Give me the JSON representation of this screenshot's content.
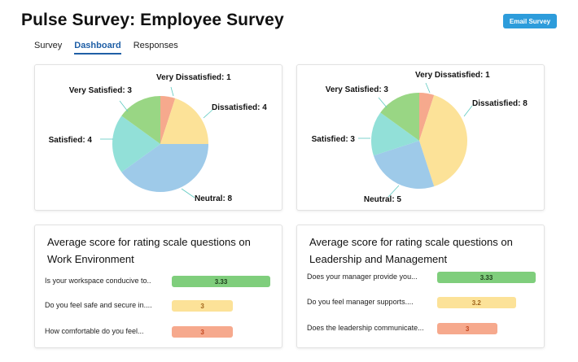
{
  "header": {
    "title": "Pulse Survey: Employee Survey",
    "email_button": "Email Survey"
  },
  "tabs": [
    {
      "label": "Survey",
      "active": false
    },
    {
      "label": "Dashboard",
      "active": true
    },
    {
      "label": "Responses",
      "active": false
    }
  ],
  "colors": {
    "very_dissatisfied": "#f6a98d",
    "dissatisfied": "#fce298",
    "neutral": "#9ecae9",
    "satisfied": "#92e0d8",
    "very_satisfied": "#99d684",
    "bar_green": "#7fce7c",
    "bar_yellow": "#fce298",
    "bar_orange": "#f6a98d"
  },
  "chart_data": [
    {
      "type": "pie",
      "title": "",
      "slices": [
        {
          "label": "Very Dissatisfied",
          "value": 1,
          "text": "Very Dissatisfied: 1"
        },
        {
          "label": "Dissatisfied",
          "value": 4,
          "text": "Dissatisfied: 4"
        },
        {
          "label": "Neutral",
          "value": 8,
          "text": "Neutral: 8"
        },
        {
          "label": "Satisfied",
          "value": 4,
          "text": "Satisfied: 4"
        },
        {
          "label": "Very Satisfied",
          "value": 3,
          "text": "Very Satisfied: 3"
        }
      ]
    },
    {
      "type": "pie",
      "title": "",
      "slices": [
        {
          "label": "Very Dissatisfied",
          "value": 1,
          "text": "Very Dissatisfied: 1"
        },
        {
          "label": "Dissatisfied",
          "value": 8,
          "text": "Dissatisfied: 8"
        },
        {
          "label": "Neutral",
          "value": 5,
          "text": "Neutral: 5"
        },
        {
          "label": "Satisfied",
          "value": 3,
          "text": "Satisfied: 3"
        },
        {
          "label": "Very Satisfied",
          "value": 3,
          "text": "Very Satisfied: 3"
        }
      ]
    },
    {
      "type": "bar",
      "title": "Average score for rating scale questions on Work Environment",
      "categories": [
        "Is your workspace conducive to..",
        "Do you feel safe and secure in....",
        "How comfortable do you feel..."
      ],
      "values": [
        3.33,
        3,
        3
      ],
      "labels": [
        "3.33",
        "3",
        "3"
      ],
      "xlim": [
        0,
        3.33
      ]
    },
    {
      "type": "bar",
      "title": "Average score for rating scale questions on Leadership and Management",
      "categories": [
        "Does your manager provide you...",
        "Do you feel manager supports....",
        "Does the leadership communicate..."
      ],
      "values": [
        3.33,
        3.2,
        3
      ],
      "labels": [
        "3.33",
        "3.2",
        "3"
      ],
      "xlim": [
        0,
        3.33
      ]
    }
  ]
}
